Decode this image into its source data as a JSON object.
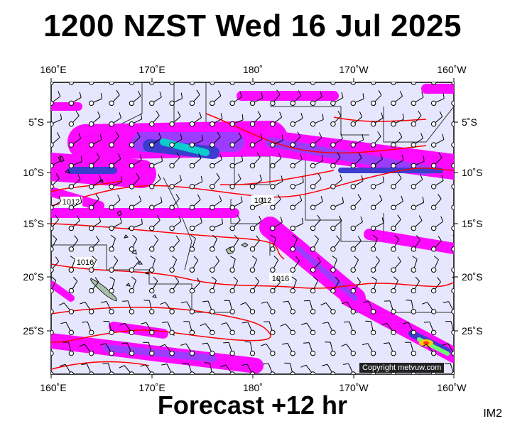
{
  "title": "1200 NZST Wed 16 Jul 2025",
  "subtitle": "Forecast +12 hr",
  "corner_label": "IM2",
  "copyright": "Copyright metvuw.com",
  "lon_labels_top": [
    "160˚E",
    "170˚E",
    "180˚",
    "170˚W",
    "160˚W"
  ],
  "lon_labels_bottom": [
    "160˚E",
    "170˚E",
    "180˚",
    "170˚W",
    "160˚W"
  ],
  "lat_labels_left": [
    "5˚S",
    "10˚S",
    "15˚S",
    "20˚S",
    "25˚S"
  ],
  "lat_labels_right": [
    "5˚S",
    "10˚S",
    "15˚S",
    "20˚S",
    "25˚S"
  ],
  "isobar_labels": [
    "1012",
    "1012",
    "1016",
    "1016"
  ],
  "colors": {
    "ocean": "#e6e6ff",
    "rain_light": "#ff00ff",
    "rain_mid": "#9933ff",
    "rain_heavy": "#3333cc",
    "rain_vheavy": "#00cccc",
    "rain_extreme": "#66ff66",
    "rain_top": "#ffcc00",
    "isobar": "#ff0000",
    "coast": "#000000"
  }
}
